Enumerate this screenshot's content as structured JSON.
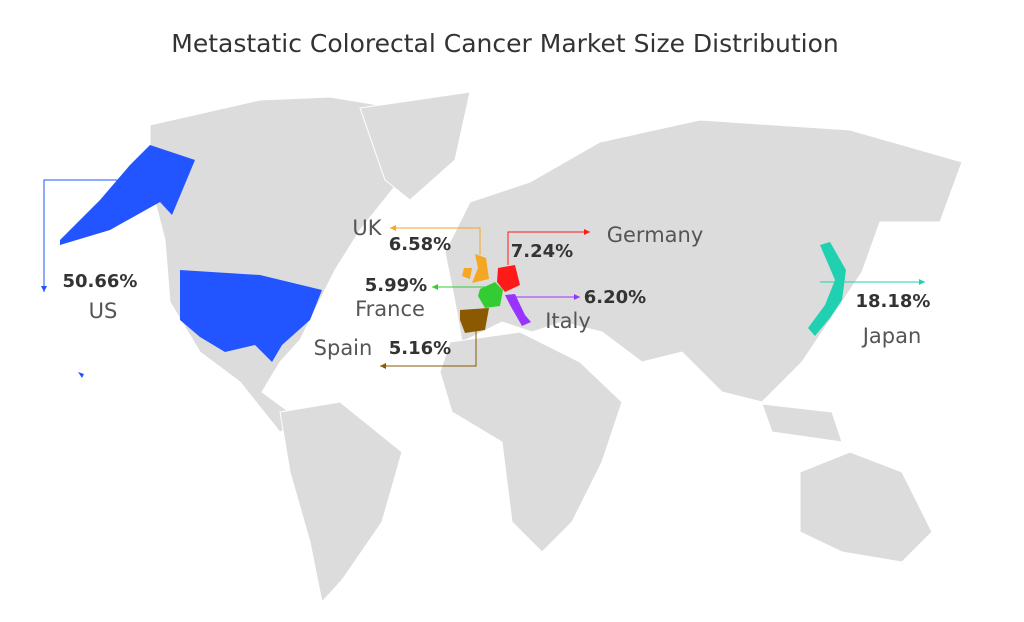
{
  "chart_data": {
    "type": "map",
    "title": "Metastatic Colorectal Cancer Market Size Distribution",
    "categories": [
      "US",
      "UK",
      "Germany",
      "France",
      "Italy",
      "Spain",
      "Japan"
    ],
    "values": [
      50.66,
      6.58,
      7.24,
      5.99,
      6.2,
      5.16,
      18.18
    ],
    "value_labels": [
      "50.66%",
      "6.58%",
      "7.24%",
      "5.99%",
      "6.20%",
      "5.16%",
      "18.18%"
    ],
    "colors": [
      "#2255ff",
      "#f5a623",
      "#ff1a1a",
      "#33cc33",
      "#9933ff",
      "#8b5a00",
      "#1fd1b0"
    ]
  }
}
